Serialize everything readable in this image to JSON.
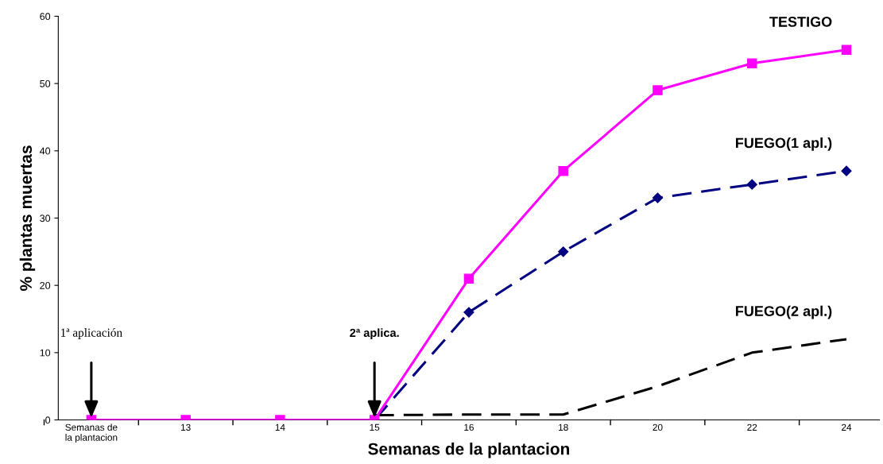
{
  "chart_data": {
    "type": "line",
    "xlabel": "Semanas de la plantacion",
    "ylabel": "% plantas muertas",
    "categories": [
      "Semanas de\nla plantacion",
      "13",
      "14",
      "15",
      "16",
      "18",
      "20",
      "22",
      "24"
    ],
    "series": [
      {
        "name": "TESTIGO",
        "color": "#ff00ff",
        "marker": "square",
        "line_style": "solid",
        "values": [
          0,
          0,
          0,
          0,
          21,
          37,
          49,
          53,
          55
        ]
      },
      {
        "name": "FUEGO(1 apl.)",
        "color": "#000080",
        "marker": "diamond",
        "line_style": "dashed",
        "values": [
          null,
          null,
          null,
          0,
          16,
          25,
          33,
          35,
          37
        ]
      },
      {
        "name": "FUEGO(2 apl.)",
        "color": "#000000",
        "marker": "none",
        "line_style": "dashed",
        "values": [
          null,
          null,
          null,
          0.7,
          0.8,
          0.8,
          5,
          10,
          12
        ]
      }
    ],
    "ylim": [
      0,
      60
    ],
    "yticks": [
      0,
      10,
      20,
      30,
      40,
      50,
      60
    ],
    "grid": false,
    "legend": false,
    "annotations": [
      "1ª aplicación",
      "2ª aplica."
    ]
  }
}
